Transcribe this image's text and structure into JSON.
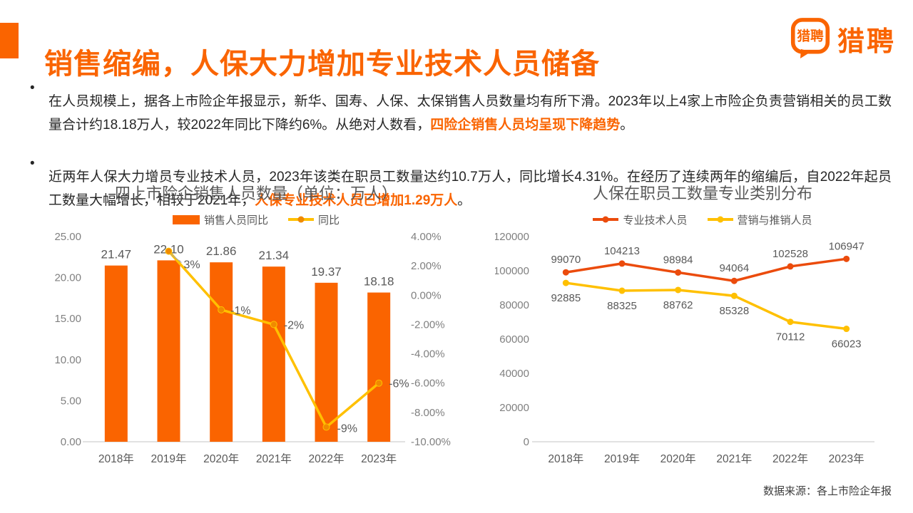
{
  "slide": {
    "title": "销售缩编，人保大力增加专业技术人员储备",
    "accent_color": "#FA6400",
    "logo": {
      "bubble_text": "猎聘",
      "wordmark": "猎聘"
    },
    "footer_source": "数据来源：各上市险企年报"
  },
  "bullets": [
    {
      "marker": "•",
      "pre": "在人员规模上，据各上市险企年报显示，新华、国寿、人保、太保销售人员数量均有所下滑。2023年以上4家上市险企负责营销相关的员工数量合计约18.18万人，较2022年同比下降约6%。从绝对人数看，",
      "highlight": "四险企销售人员均呈现下降趋势",
      "post": "。"
    },
    {
      "marker": "•",
      "pre": "近两年人保大力增员专业技术人员，2023年该类在职员工数量达约10.7万人，同比增长4.31%。在经历了连续两年的缩编后，自2022年起员工数量大幅增长，相较于2021年，",
      "highlight": "人保专业技术人员已增加1.29万人",
      "post": "。"
    }
  ],
  "chart_data": [
    {
      "type": "bar",
      "title": "四上市险企销售人员数量（单位：万人）",
      "categories": [
        "2018年",
        "2019年",
        "2020年",
        "2021年",
        "2022年",
        "2023年"
      ],
      "series": [
        {
          "name": "销售人员同比",
          "type": "bar",
          "axis": "primary",
          "color": "#FA6400",
          "values": [
            21.47,
            22.1,
            21.86,
            21.34,
            19.37,
            18.18
          ],
          "labels": [
            "21.47",
            "22.10",
            "21.86",
            "21.34",
            "19.37",
            "18.18"
          ]
        },
        {
          "name": "同比",
          "type": "line",
          "axis": "secondary",
          "color": "#FFC000",
          "marker_color": "#F08A00",
          "values": [
            null,
            3,
            -1,
            -2,
            -9,
            -6
          ],
          "labels": [
            "",
            "3%",
            "-1%",
            "-2%",
            "-9%",
            "-6%"
          ]
        }
      ],
      "primary_axis": {
        "min": 0,
        "max": 25,
        "ticks": [
          "25.00",
          "20.00",
          "15.00",
          "10.00",
          "5.00",
          "0.00"
        ]
      },
      "secondary_axis": {
        "min": -10,
        "max": 4,
        "ticks": [
          "4.00%",
          "2.00%",
          "0.00%",
          "-2.00%",
          "-4.00%",
          "-6.00%",
          "-8.00%",
          "-10.00%"
        ]
      },
      "legend_position": "top",
      "grid": false
    },
    {
      "type": "line",
      "title": "人保在职员工数量专业类别分布",
      "categories": [
        "2018年",
        "2019年",
        "2020年",
        "2021年",
        "2022年",
        "2023年"
      ],
      "series": [
        {
          "name": "专业技术人员",
          "color": "#EB4B0C",
          "values": [
            99070,
            104213,
            98984,
            94064,
            102528,
            106947
          ]
        },
        {
          "name": "营销与推销人员",
          "color": "#FFC000",
          "values": [
            92885,
            88325,
            88762,
            85328,
            70112,
            66023
          ]
        }
      ],
      "y_axis": {
        "min": 0,
        "max": 120000,
        "ticks": [
          "120000",
          "100000",
          "80000",
          "60000",
          "40000",
          "20000",
          "0"
        ]
      },
      "legend_position": "top",
      "grid": false
    }
  ]
}
